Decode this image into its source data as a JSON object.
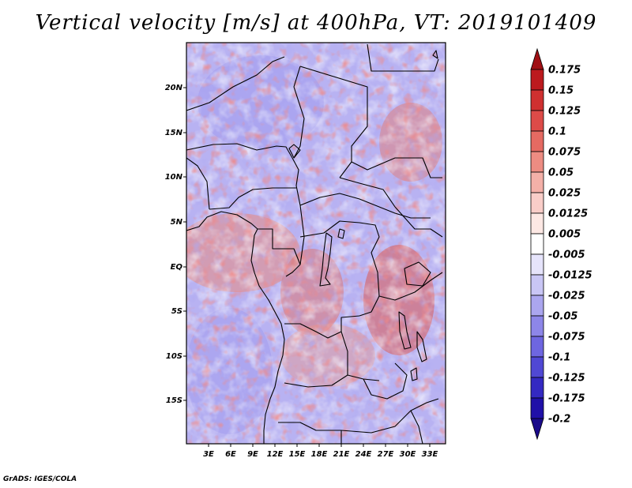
{
  "title": "Vertical velocity [m/s] at 400hPa, VT: 2019101409",
  "credit": "GrADS: IGES/COLA",
  "lat_ticks": [
    "20N",
    "15N",
    "10N",
    "5N",
    "EQ",
    "5S",
    "10S",
    "15S"
  ],
  "lon_ticks": [
    "3E",
    "6E",
    "9E",
    "12E",
    "15E",
    "18E",
    "21E",
    "24E",
    "27E",
    "30E",
    "33E"
  ],
  "colorbar": {
    "levels": [
      "0.175",
      "0.15",
      "0.125",
      "0.1",
      "0.075",
      "0.05",
      "0.025",
      "0.0125",
      "0.005",
      "-0.005",
      "-0.0125",
      "-0.025",
      "-0.05",
      "-0.075",
      "-0.1",
      "-0.125",
      "-0.175",
      "-0.2"
    ],
    "colors": [
      "#a00f14",
      "#bc1a1e",
      "#cf3030",
      "#dd4b48",
      "#e56a62",
      "#ed8c82",
      "#f4b0a8",
      "#f9cdc8",
      "#fde8e4",
      "#ffffff",
      "#e6e4fb",
      "#c9c6f5",
      "#aba6ef",
      "#8d86e8",
      "#6e66e0",
      "#5048d4",
      "#3429c2",
      "#2010a8",
      "#1a0a8a"
    ]
  }
}
